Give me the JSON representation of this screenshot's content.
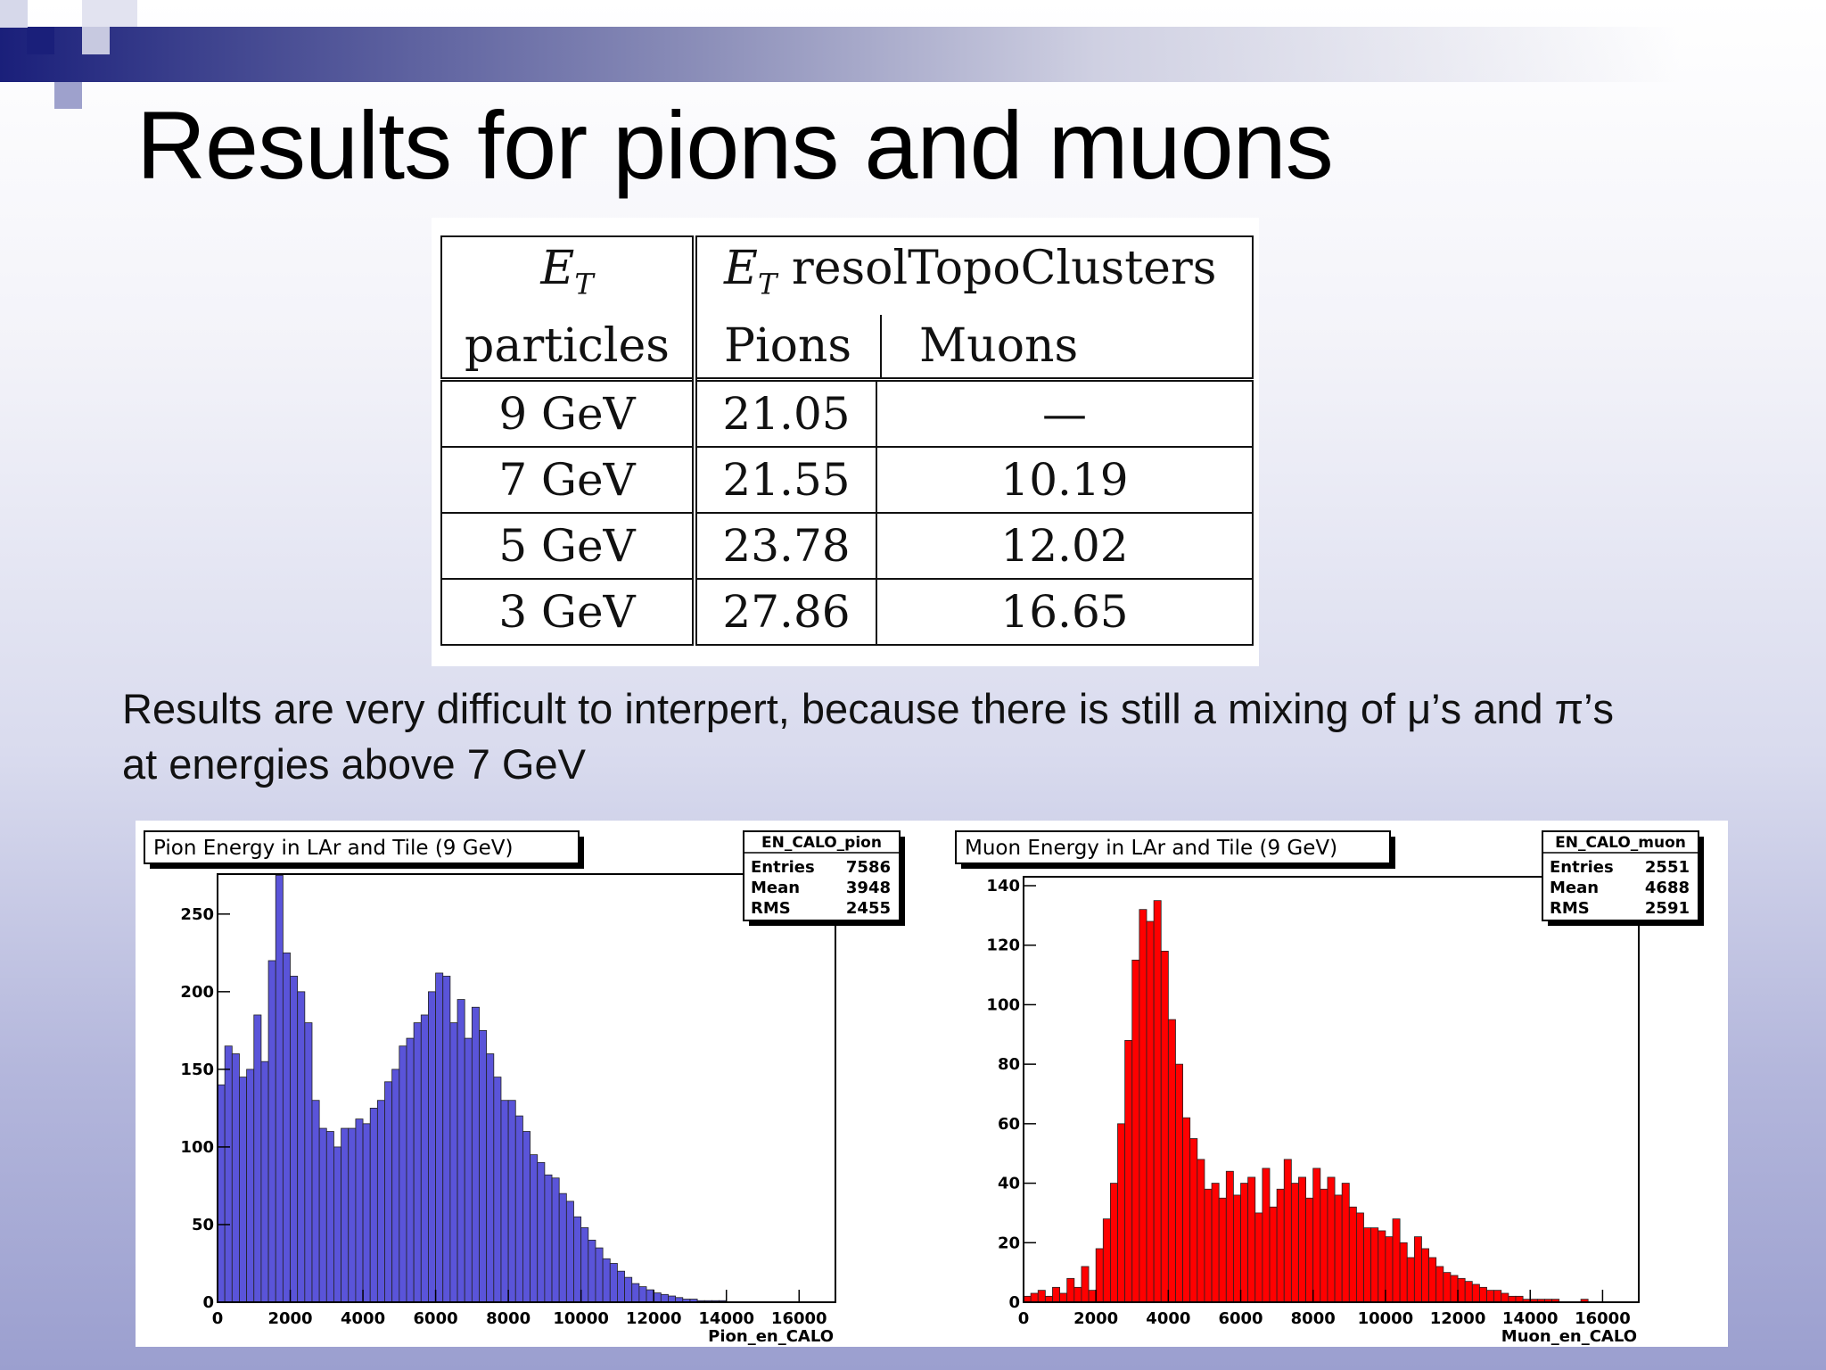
{
  "slide": {
    "title": "Results for pions and muons",
    "body_line1": "Results are very difficult to interpert, because there is still a mixing of μ’s and π’s",
    "body_line2": "at energies above 7 GeV"
  },
  "table": {
    "header_col1_sym": "E",
    "header_col1_sub": "T",
    "header_col1_line2": "particles",
    "header_col2_sym": "E",
    "header_col2_sub": "T",
    "header_col2_rest": "resolTopoClusters",
    "header_pions": "Pions",
    "header_muons": "Muons",
    "rows": [
      {
        "energy": "9 GeV",
        "pions": "21.05",
        "muons": "—"
      },
      {
        "energy": "7 GeV",
        "pions": "21.55",
        "muons": "10.19"
      },
      {
        "energy": "5 GeV",
        "pions": "23.78",
        "muons": "12.02"
      },
      {
        "energy": "3 GeV",
        "pions": "27.86",
        "muons": "16.65"
      }
    ]
  },
  "colors": {
    "pion_fill": "#5a54d9",
    "muon_fill": "#ff0000",
    "frame": "#000000"
  },
  "chart_data": [
    {
      "type": "bar",
      "title": "Pion Energy in LAr and Tile (9 GeV)",
      "xlabel": "Pion_en_CALO",
      "ylabel": "",
      "xlim": [
        0,
        17000
      ],
      "ylim": [
        0,
        270
      ],
      "x_ticks": [
        "0",
        "2000",
        "4000",
        "6000",
        "8000",
        "10000",
        "12000",
        "14000",
        "16000"
      ],
      "y_ticks": [
        "0",
        "50",
        "100",
        "150",
        "200",
        "250"
      ],
      "bin_width": 200,
      "values": [
        140,
        165,
        160,
        145,
        150,
        185,
        155,
        220,
        275,
        225,
        210,
        200,
        180,
        130,
        112,
        110,
        100,
        112,
        112,
        118,
        115,
        125,
        130,
        142,
        150,
        165,
        170,
        180,
        185,
        200,
        212,
        210,
        180,
        195,
        170,
        190,
        175,
        160,
        145,
        130,
        130,
        120,
        110,
        95,
        90,
        82,
        80,
        70,
        65,
        55,
        48,
        40,
        35,
        28,
        25,
        20,
        16,
        12,
        10,
        8,
        6,
        5,
        4,
        3,
        2,
        2,
        1,
        1,
        1,
        1
      ],
      "stats": {
        "name": "EN_CALO_pion",
        "entries": "7586",
        "mean": "3948",
        "rms": "2455",
        "entries_label": "Entries",
        "mean_label": "Mean",
        "rms_label": "RMS"
      }
    },
    {
      "type": "bar",
      "title": "Muon Energy in LAr and Tile (9 GeV)",
      "xlabel": "Muon_en_CALO",
      "ylabel": "",
      "xlim": [
        0,
        17000
      ],
      "ylim": [
        0,
        140
      ],
      "x_ticks": [
        "0",
        "2000",
        "4000",
        "6000",
        "8000",
        "10000",
        "12000",
        "14000",
        "16000"
      ],
      "y_ticks": [
        "0",
        "20",
        "40",
        "60",
        "80",
        "100",
        "120",
        "140"
      ],
      "bin_width": 200,
      "values": [
        2,
        3,
        4,
        2,
        5,
        3,
        8,
        5,
        12,
        4,
        18,
        28,
        40,
        60,
        88,
        115,
        132,
        128,
        135,
        118,
        95,
        80,
        62,
        55,
        48,
        38,
        40,
        35,
        44,
        36,
        40,
        42,
        30,
        45,
        32,
        38,
        48,
        40,
        42,
        35,
        45,
        38,
        42,
        36,
        40,
        32,
        30,
        25,
        25,
        24,
        22,
        28,
        20,
        15,
        22,
        18,
        15,
        12,
        10,
        9,
        8,
        7,
        6,
        5,
        4,
        4,
        3,
        2,
        2,
        1,
        1,
        1,
        1,
        1,
        0,
        0,
        0,
        1
      ],
      "stats": {
        "name": "EN_CALO_muon",
        "entries": "2551",
        "mean": "4688",
        "rms": "2591",
        "entries_label": "Entries",
        "mean_label": "Mean",
        "rms_label": "RMS"
      }
    }
  ]
}
